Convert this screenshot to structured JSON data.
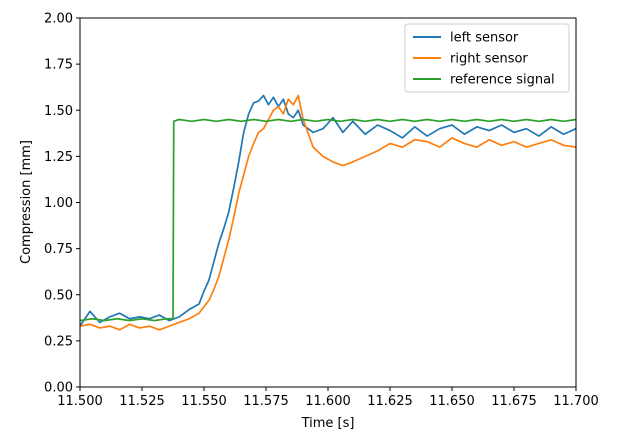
{
  "chart_data": {
    "type": "line",
    "title": "",
    "xlabel": "Time [s]",
    "ylabel": "Compression [mm]",
    "xlim": [
      11.5,
      11.7
    ],
    "ylim": [
      0.0,
      2.0
    ],
    "xticks": [
      "11.500",
      "11.525",
      "11.550",
      "11.575",
      "11.600",
      "11.625",
      "11.650",
      "11.675",
      "11.700"
    ],
    "yticks": [
      "0.00",
      "0.25",
      "0.50",
      "0.75",
      "1.00",
      "1.25",
      "1.50",
      "1.75",
      "2.00"
    ],
    "grid": false,
    "legend_position": "top-right",
    "series": [
      {
        "name": "left sensor",
        "color": "#1f77b4",
        "x": [
          11.5,
          11.504,
          11.508,
          11.512,
          11.516,
          11.52,
          11.524,
          11.528,
          11.532,
          11.536,
          11.54,
          11.544,
          11.548,
          11.55,
          11.552,
          11.554,
          11.556,
          11.558,
          11.56,
          11.562,
          11.564,
          11.566,
          11.568,
          11.57,
          11.572,
          11.574,
          11.576,
          11.578,
          11.58,
          11.582,
          11.584,
          11.586,
          11.588,
          11.59,
          11.594,
          11.598,
          11.602,
          11.606,
          11.61,
          11.615,
          11.62,
          11.625,
          11.63,
          11.635,
          11.64,
          11.645,
          11.65,
          11.655,
          11.66,
          11.665,
          11.67,
          11.675,
          11.68,
          11.685,
          11.69,
          11.695,
          11.7
        ],
        "y": [
          0.33,
          0.41,
          0.35,
          0.38,
          0.4,
          0.37,
          0.38,
          0.37,
          0.39,
          0.36,
          0.38,
          0.42,
          0.45,
          0.52,
          0.58,
          0.68,
          0.78,
          0.86,
          0.95,
          1.08,
          1.22,
          1.38,
          1.48,
          1.54,
          1.55,
          1.58,
          1.53,
          1.57,
          1.52,
          1.56,
          1.48,
          1.46,
          1.5,
          1.42,
          1.38,
          1.4,
          1.46,
          1.38,
          1.44,
          1.37,
          1.42,
          1.39,
          1.35,
          1.41,
          1.36,
          1.4,
          1.42,
          1.37,
          1.41,
          1.39,
          1.42,
          1.38,
          1.4,
          1.36,
          1.41,
          1.37,
          1.4
        ]
      },
      {
        "name": "right sensor",
        "color": "#ff7f0e",
        "x": [
          11.5,
          11.504,
          11.508,
          11.512,
          11.516,
          11.52,
          11.524,
          11.528,
          11.532,
          11.536,
          11.54,
          11.544,
          11.548,
          11.552,
          11.554,
          11.556,
          11.558,
          11.56,
          11.562,
          11.564,
          11.566,
          11.568,
          11.57,
          11.572,
          11.574,
          11.576,
          11.578,
          11.58,
          11.582,
          11.584,
          11.586,
          11.588,
          11.59,
          11.594,
          11.598,
          11.602,
          11.606,
          11.61,
          11.615,
          11.62,
          11.625,
          11.63,
          11.635,
          11.64,
          11.645,
          11.65,
          11.655,
          11.66,
          11.665,
          11.67,
          11.675,
          11.68,
          11.685,
          11.69,
          11.695,
          11.7
        ],
        "y": [
          0.33,
          0.34,
          0.32,
          0.33,
          0.31,
          0.34,
          0.32,
          0.33,
          0.31,
          0.33,
          0.35,
          0.37,
          0.4,
          0.47,
          0.53,
          0.6,
          0.7,
          0.8,
          0.92,
          1.05,
          1.15,
          1.25,
          1.32,
          1.38,
          1.4,
          1.45,
          1.5,
          1.52,
          1.48,
          1.56,
          1.53,
          1.58,
          1.45,
          1.3,
          1.25,
          1.22,
          1.2,
          1.22,
          1.25,
          1.28,
          1.32,
          1.3,
          1.34,
          1.33,
          1.3,
          1.35,
          1.32,
          1.3,
          1.34,
          1.31,
          1.33,
          1.3,
          1.32,
          1.34,
          1.31,
          1.3
        ]
      },
      {
        "name": "reference signal",
        "color": "#2ca02c",
        "x": [
          11.5,
          11.505,
          11.51,
          11.515,
          11.52,
          11.525,
          11.53,
          11.535,
          11.5375,
          11.5378,
          11.54,
          11.545,
          11.55,
          11.555,
          11.56,
          11.565,
          11.57,
          11.575,
          11.58,
          11.585,
          11.59,
          11.595,
          11.6,
          11.605,
          11.61,
          11.615,
          11.62,
          11.625,
          11.63,
          11.635,
          11.64,
          11.645,
          11.65,
          11.655,
          11.66,
          11.665,
          11.67,
          11.675,
          11.68,
          11.685,
          11.69,
          11.695,
          11.7
        ],
        "y": [
          0.36,
          0.37,
          0.36,
          0.37,
          0.36,
          0.37,
          0.36,
          0.37,
          0.37,
          1.44,
          1.45,
          1.44,
          1.45,
          1.44,
          1.45,
          1.44,
          1.45,
          1.44,
          1.45,
          1.44,
          1.45,
          1.44,
          1.45,
          1.44,
          1.45,
          1.44,
          1.45,
          1.44,
          1.45,
          1.44,
          1.45,
          1.44,
          1.45,
          1.44,
          1.45,
          1.44,
          1.45,
          1.44,
          1.45,
          1.44,
          1.45,
          1.44,
          1.45
        ]
      }
    ]
  }
}
